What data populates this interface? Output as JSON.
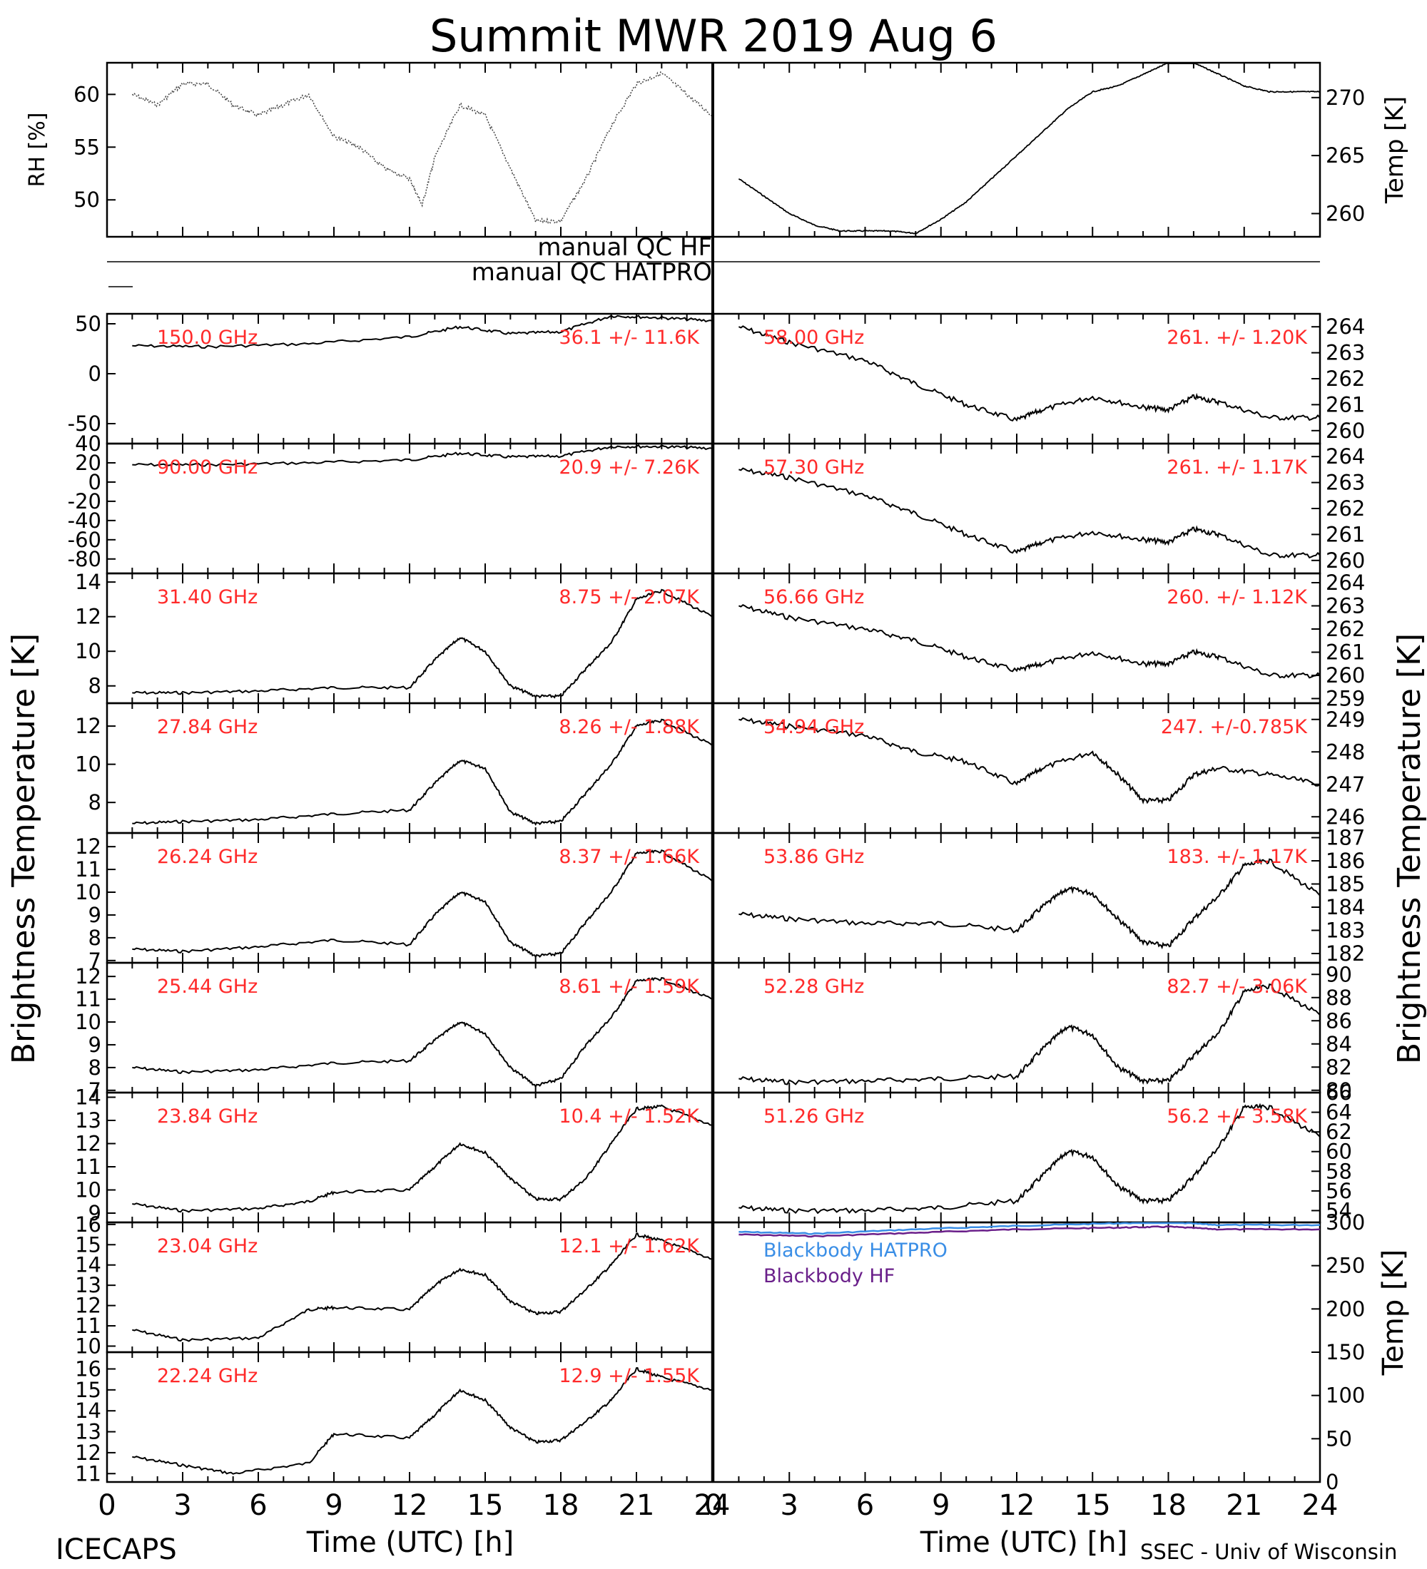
{
  "title": "Summit MWR 2019 Aug  6",
  "footer": {
    "left": "ICECAPS",
    "right": "SSEC - Univ of Wisconsin"
  },
  "xlabel": "Time (UTC) [h]",
  "ylabel_left": "Brightness Temperature [K]",
  "ylabel_right": "Brightness Temperature [K]",
  "qc": {
    "hf": "manual QC HF",
    "hatpro": "manual QC HATPRO"
  },
  "x_ticks": [
    "0",
    "3",
    "6",
    "9",
    "12",
    "15",
    "18",
    "21",
    "24"
  ],
  "colors": {
    "trace": "#000000",
    "annotation": "#ff2a2a",
    "bb_hatpro": "#3a8ee6",
    "bb_hf": "#6a1f8a"
  },
  "chart_data": [
    {
      "type": "line",
      "panel": "rh",
      "ylabel": "RH [%]",
      "ylim": [
        46.5,
        63
      ],
      "yticks": [
        50,
        55,
        60
      ],
      "xlim": [
        0,
        24
      ],
      "series": [
        {
          "x": [
            1,
            2,
            3,
            4,
            5,
            6,
            7,
            8,
            9,
            10,
            11,
            12,
            12.5,
            13,
            14,
            15,
            16,
            17,
            18,
            19,
            20,
            21,
            22,
            23,
            24
          ],
          "values": [
            60,
            59,
            61,
            61,
            59,
            58,
            59,
            60,
            56,
            55,
            53,
            52,
            49.5,
            54,
            59,
            58,
            53,
            48,
            48,
            52,
            57,
            61,
            62,
            60,
            58
          ]
        }
      ]
    },
    {
      "type": "line",
      "panel": "temp",
      "ylabel": "Temp [K]",
      "ylim": [
        258,
        273
      ],
      "yticks": [
        260,
        265,
        270
      ],
      "xlim": [
        0,
        24
      ],
      "series": [
        {
          "x": [
            1,
            2,
            3,
            4,
            5,
            6,
            7,
            8,
            9,
            10,
            11,
            12,
            13,
            14,
            15,
            16,
            17,
            18,
            19,
            20,
            21,
            22,
            23,
            24
          ],
          "values": [
            263,
            261.5,
            260,
            259,
            258.5,
            258.5,
            258.5,
            258.3,
            259.5,
            261,
            263,
            265,
            267,
            269,
            270.5,
            271,
            272,
            273,
            273,
            272,
            271,
            270.5,
            270.5,
            270.5
          ]
        }
      ]
    },
    {
      "type": "line",
      "panel": "150",
      "label": "150.0 GHz",
      "stat": "36.1 +/-  11.6K",
      "ylim": [
        -70,
        60
      ],
      "yticks": [
        -50,
        0,
        50
      ],
      "xlim": [
        0,
        24
      ],
      "series": [
        {
          "x": [
            1,
            4,
            8,
            12,
            14,
            16,
            18,
            20,
            22,
            24
          ],
          "values": [
            28,
            27,
            30,
            37,
            47,
            40,
            42,
            58,
            56,
            53
          ]
        }
      ]
    },
    {
      "type": "line",
      "panel": "90",
      "label": "90.00 GHz",
      "stat": "20.9 +/-  7.26K",
      "ylim": [
        -95,
        40
      ],
      "yticks": [
        -80,
        -60,
        -40,
        -20,
        0,
        20,
        40
      ],
      "xlim": [
        0,
        24
      ],
      "series": [
        {
          "x": [
            1,
            4,
            8,
            12,
            14,
            16,
            18,
            20,
            22,
            24
          ],
          "values": [
            18,
            18,
            20,
            23,
            30,
            26,
            27,
            37,
            37,
            35
          ]
        }
      ]
    },
    {
      "type": "line",
      "panel": "31.40",
      "label": "31.40 GHz",
      "stat": "8.75 +/-  2.07K",
      "ylim": [
        7,
        14.5
      ],
      "yticks": [
        8,
        10,
        12,
        14
      ],
      "xlim": [
        0,
        24
      ],
      "series": [
        {
          "x": [
            1,
            3,
            6,
            9,
            12,
            13,
            14,
            15,
            16,
            17,
            18,
            19,
            20,
            21,
            22,
            24
          ],
          "values": [
            7.6,
            7.6,
            7.7,
            7.9,
            7.9,
            9.5,
            10.8,
            10,
            8,
            7.4,
            7.4,
            9,
            10.5,
            13,
            13.5,
            12
          ]
        }
      ]
    },
    {
      "type": "line",
      "panel": "27.84",
      "label": "27.84 GHz",
      "stat": "8.26 +/-  1.88K",
      "ylim": [
        6.4,
        13.2
      ],
      "yticks": [
        8,
        10,
        12
      ],
      "xlim": [
        0,
        24
      ],
      "series": [
        {
          "x": [
            1,
            3,
            6,
            9,
            12,
            13,
            14,
            15,
            16,
            17,
            18,
            19,
            20,
            21,
            22,
            24
          ],
          "values": [
            6.9,
            7,
            7.1,
            7.4,
            7.6,
            9,
            10.2,
            9.8,
            7.5,
            6.9,
            7,
            8.5,
            10,
            12,
            12.3,
            11
          ]
        }
      ]
    },
    {
      "type": "line",
      "panel": "26.24",
      "label": "26.24 GHz",
      "stat": "8.37 +/-  1.66K",
      "ylim": [
        6.9,
        12.6
      ],
      "yticks": [
        7,
        8,
        9,
        10,
        11,
        12
      ],
      "xlim": [
        0,
        24
      ],
      "series": [
        {
          "x": [
            1,
            3,
            6,
            9,
            12,
            13,
            14,
            15,
            16,
            17,
            18,
            19,
            20,
            21,
            22,
            24
          ],
          "values": [
            7.5,
            7.4,
            7.6,
            7.9,
            7.7,
            9,
            10,
            9.6,
            7.8,
            7.2,
            7.3,
            8.7,
            10,
            11.7,
            11.8,
            10.5
          ]
        }
      ]
    },
    {
      "type": "line",
      "panel": "25.44",
      "label": "25.44 GHz",
      "stat": "8.61 +/-  1.59K",
      "ylim": [
        6.9,
        12.6
      ],
      "yticks": [
        7,
        8,
        9,
        10,
        11,
        12
      ],
      "xlim": [
        0,
        24
      ],
      "series": [
        {
          "x": [
            1,
            3,
            6,
            9,
            12,
            13,
            14,
            15,
            16,
            17,
            18,
            19,
            20,
            21,
            22,
            24
          ],
          "values": [
            8,
            7.8,
            7.9,
            8.2,
            8.3,
            9.2,
            10,
            9.5,
            8,
            7.2,
            7.5,
            9,
            10.2,
            11.8,
            11.9,
            11
          ]
        }
      ]
    },
    {
      "type": "line",
      "panel": "23.84",
      "label": "23.84 GHz",
      "stat": "10.4 +/-  1.52K",
      "ylim": [
        8.6,
        14.2
      ],
      "yticks": [
        9,
        10,
        11,
        12,
        13,
        14
      ],
      "xlim": [
        0,
        24
      ],
      "series": [
        {
          "x": [
            1,
            3,
            6,
            8,
            9,
            12,
            13,
            14,
            15,
            16,
            17,
            18,
            19,
            20,
            21,
            22,
            24
          ],
          "values": [
            9.4,
            9.1,
            9.2,
            9.5,
            9.9,
            10,
            11,
            12,
            11.6,
            10.5,
            9.6,
            9.6,
            10.5,
            12,
            13.5,
            13.6,
            12.8
          ]
        }
      ]
    },
    {
      "type": "line",
      "panel": "23.04",
      "label": "23.04 GHz",
      "stat": "12.1 +/-  1.62K",
      "ylim": [
        9.7,
        16.1
      ],
      "yticks": [
        10,
        11,
        12,
        13,
        14,
        15,
        16
      ],
      "xlim": [
        0,
        24
      ],
      "series": [
        {
          "x": [
            1,
            3,
            6,
            8,
            9,
            12,
            13,
            14,
            15,
            16,
            17,
            18,
            19,
            20,
            21,
            22,
            24
          ],
          "values": [
            10.8,
            10.3,
            10.4,
            11.8,
            11.9,
            11.8,
            13,
            13.8,
            13.5,
            12.2,
            11.6,
            11.7,
            12.8,
            14,
            15.5,
            15.2,
            14.3
          ]
        }
      ]
    },
    {
      "type": "line",
      "panel": "22.24",
      "label": "22.24 GHz",
      "stat": "12.9 +/-  1.55K",
      "ylim": [
        10.6,
        16.8
      ],
      "yticks": [
        11,
        12,
        13,
        14,
        15,
        16
      ],
      "xlim": [
        0,
        24
      ],
      "series": [
        {
          "x": [
            1,
            3,
            5,
            8,
            9,
            12,
            13,
            14,
            15,
            16,
            17,
            18,
            19,
            20,
            21,
            22,
            24
          ],
          "values": [
            11.8,
            11.4,
            11,
            11.5,
            12.9,
            12.7,
            13.8,
            15,
            14.5,
            13.2,
            12.5,
            12.6,
            13.5,
            14.5,
            16,
            15.6,
            15
          ]
        }
      ]
    },
    {
      "type": "line",
      "panel": "58.00",
      "label": "58.00 GHz",
      "stat": "261. +/-  1.20K",
      "ylim": [
        259.5,
        264.5
      ],
      "yticks": [
        260,
        261,
        262,
        263,
        264
      ],
      "xlim": [
        0,
        24
      ],
      "series": [
        {
          "x": [
            1,
            3,
            6,
            8,
            10,
            12,
            13,
            15,
            17,
            18,
            19,
            20,
            22,
            24
          ],
          "values": [
            264,
            263.4,
            262.7,
            261.8,
            261,
            260.4,
            260.8,
            261.3,
            260.9,
            260.8,
            261.3,
            261.1,
            260.5,
            260.5
          ]
        }
      ]
    },
    {
      "type": "line",
      "panel": "57.30",
      "label": "57.30 GHz",
      "stat": "261. +/-  1.17K",
      "ylim": [
        259.5,
        264.5
      ],
      "yticks": [
        260,
        261,
        262,
        263,
        264
      ],
      "xlim": [
        0,
        24
      ],
      "series": [
        {
          "x": [
            1,
            3,
            6,
            8,
            10,
            12,
            13,
            15,
            17,
            18,
            19,
            20,
            22,
            24
          ],
          "values": [
            263.5,
            263.2,
            262.5,
            261.8,
            261,
            260.3,
            260.7,
            261.1,
            260.8,
            260.7,
            261.2,
            261,
            260.2,
            260.2
          ]
        }
      ]
    },
    {
      "type": "line",
      "panel": "56.66",
      "label": "56.66 GHz",
      "stat": "260. +/-  1.12K",
      "ylim": [
        258.8,
        264.4
      ],
      "yticks": [
        259,
        260,
        261,
        262,
        263,
        264
      ],
      "xlim": [
        0,
        24
      ],
      "series": [
        {
          "x": [
            1,
            3,
            6,
            8,
            10,
            12,
            13,
            15,
            17,
            18,
            19,
            20,
            22,
            24
          ],
          "values": [
            263,
            262.5,
            262,
            261.5,
            260.8,
            260.2,
            260.5,
            261,
            260.5,
            260.5,
            261,
            260.8,
            260,
            260
          ]
        }
      ]
    },
    {
      "type": "line",
      "panel": "54.94",
      "label": "54.94 GHz",
      "stat": "247. +/-0.785K",
      "ylim": [
        245.5,
        249.5
      ],
      "yticks": [
        246,
        247,
        248,
        249
      ],
      "xlim": [
        0,
        24
      ],
      "series": [
        {
          "x": [
            1,
            3,
            6,
            8,
            10,
            12,
            13,
            15,
            16,
            17,
            18,
            19,
            20,
            22,
            24
          ],
          "values": [
            249,
            248.8,
            248.5,
            248,
            247.7,
            247,
            247.5,
            248,
            247.3,
            246.5,
            246.5,
            247.3,
            247.5,
            247.3,
            247
          ]
        }
      ]
    },
    {
      "type": "line",
      "panel": "53.86",
      "label": "53.86 GHz",
      "stat": "183. +/-  1.17K",
      "ylim": [
        181.6,
        187.2
      ],
      "yticks": [
        182,
        183,
        184,
        185,
        186,
        187
      ],
      "xlim": [
        0,
        24
      ],
      "series": [
        {
          "x": [
            1,
            3,
            6,
            9,
            12,
            13,
            14,
            15,
            16,
            17,
            18,
            19,
            20,
            21,
            22,
            24
          ],
          "values": [
            183.7,
            183.5,
            183.3,
            183.3,
            183,
            184,
            184.8,
            184.6,
            183.5,
            182.5,
            182.3,
            183.5,
            184.5,
            185.8,
            186,
            184.5
          ]
        }
      ]
    },
    {
      "type": "line",
      "panel": "52.28",
      "label": "52.28 GHz",
      "stat": "82.7 +/-  3.06K",
      "ylim": [
        79.8,
        91
      ],
      "yticks": [
        80,
        82,
        84,
        86,
        88,
        90
      ],
      "xlim": [
        0,
        24
      ],
      "series": [
        {
          "x": [
            1,
            3,
            6,
            9,
            12,
            13,
            14,
            15,
            16,
            17,
            18,
            19,
            20,
            21,
            22,
            24
          ],
          "values": [
            81,
            80.7,
            80.8,
            81,
            81.2,
            83.5,
            85.5,
            84.8,
            82,
            80.8,
            80.8,
            83,
            85,
            88.5,
            89,
            86.5
          ]
        }
      ]
    },
    {
      "type": "line",
      "panel": "51.26",
      "label": "51.26 GHz",
      "stat": "56.2 +/-  3.58K",
      "ylim": [
        52.8,
        66
      ],
      "yticks": [
        54,
        56,
        58,
        60,
        62,
        64,
        66
      ],
      "xlim": [
        0,
        24
      ],
      "series": [
        {
          "x": [
            1,
            3,
            6,
            9,
            12,
            13,
            14,
            15,
            16,
            17,
            18,
            19,
            20,
            21,
            22,
            24
          ],
          "values": [
            54.3,
            54,
            54,
            54.3,
            55,
            57.5,
            60,
            59.5,
            56.5,
            55,
            55,
            57.5,
            60.5,
            64.5,
            64.5,
            61.5
          ]
        }
      ]
    },
    {
      "type": "line",
      "panel": "blackbody",
      "ylabel": "Temp [K]",
      "ylim": [
        0,
        300
      ],
      "yticks": [
        0,
        50,
        100,
        150,
        200,
        250,
        300
      ],
      "xlim": [
        0,
        24
      ],
      "series": [
        {
          "name": "Blackbody HATPRO",
          "x": [
            1,
            4,
            8,
            12,
            16,
            18,
            20,
            24
          ],
          "values": [
            289,
            287,
            292,
            296,
            299,
            300,
            297,
            297
          ]
        },
        {
          "name": "Blackbody HF",
          "x": [
            1,
            4,
            8,
            12,
            16,
            18,
            20,
            24
          ],
          "values": [
            286,
            284,
            288,
            292,
            294,
            295,
            292,
            292
          ]
        }
      ]
    }
  ]
}
